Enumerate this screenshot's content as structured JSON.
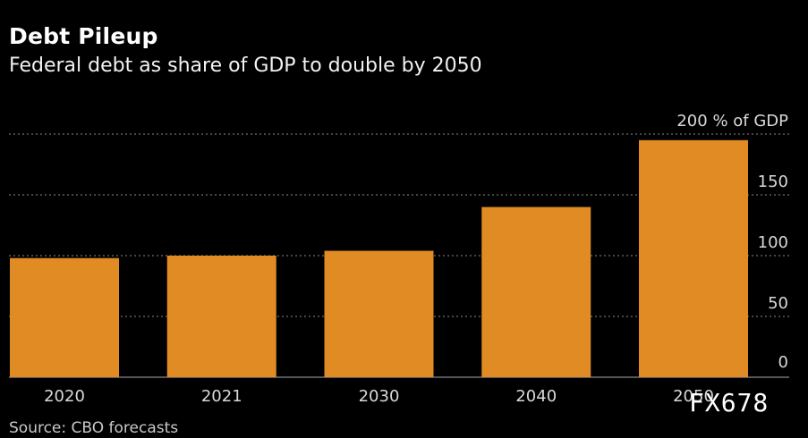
{
  "chart_data": {
    "type": "bar",
    "title": "Debt Pileup",
    "subtitle": "Federal debt as share of GDP to double by 2050",
    "categories": [
      "2020",
      "2021",
      "2030",
      "2040",
      "2050"
    ],
    "values": [
      98,
      100,
      104,
      140,
      195
    ],
    "ylim": [
      0,
      200
    ],
    "yticks": [
      0,
      50,
      100,
      150,
      200
    ],
    "ytick_labels": [
      "0",
      "50",
      "100",
      "150",
      "200 % of GDP"
    ],
    "ylabel": "% of GDP",
    "xlabel": "",
    "grid": true,
    "bar_color": "#e08b23",
    "grid_color": "#8a8a8a",
    "source": "Source: CBO forecasts"
  },
  "watermark": "FX678",
  "colors": {
    "background": "#000000",
    "text": "#ffffff",
    "tick_text": "#d9d9d9"
  }
}
